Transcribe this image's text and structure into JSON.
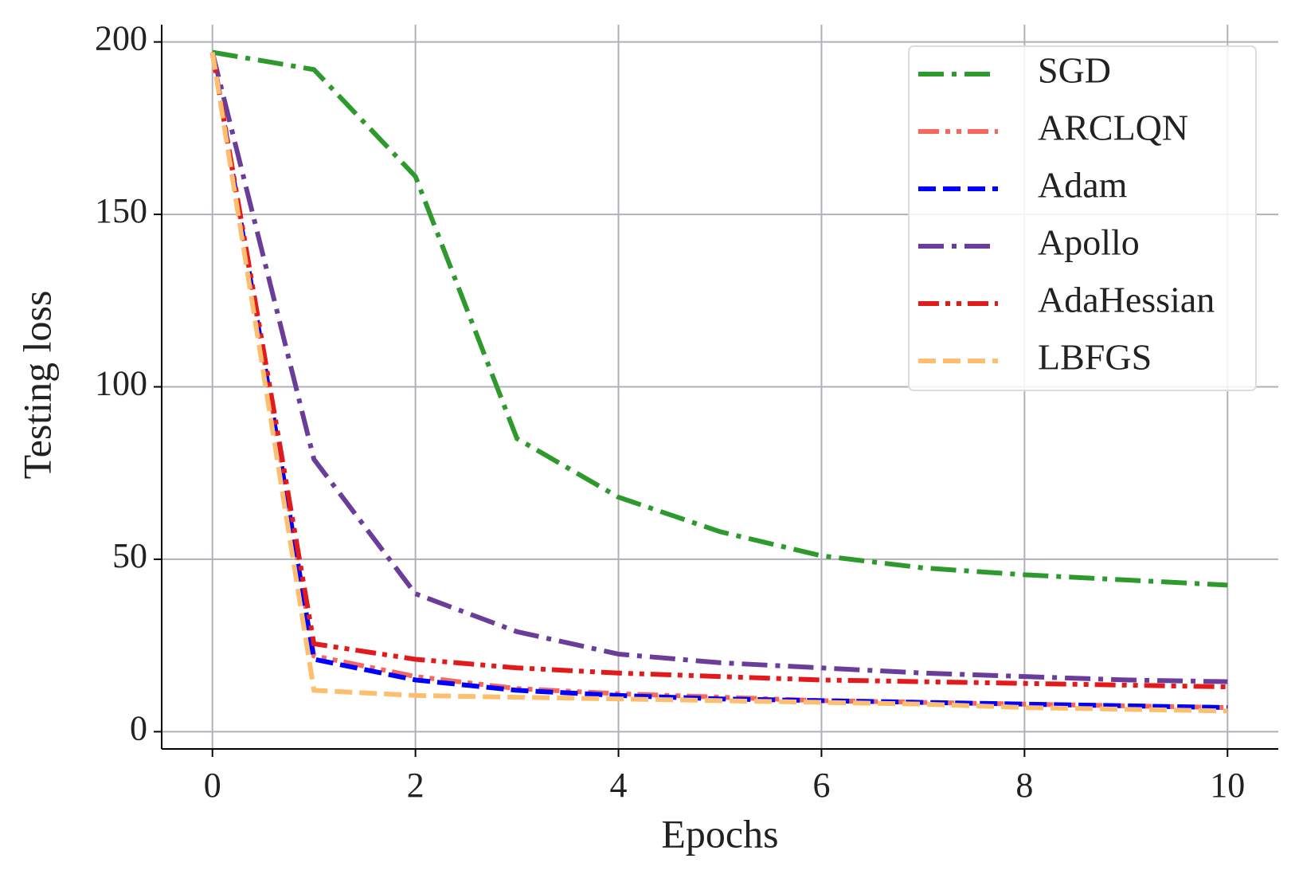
{
  "chart_data": {
    "type": "line",
    "x_label": "Epochs",
    "y_label": "Testing loss",
    "x": [
      0,
      1,
      2,
      3,
      4,
      5,
      6,
      7,
      8,
      9,
      10
    ],
    "xlim": [
      -0.5,
      10.5
    ],
    "xticks": [
      0,
      2,
      4,
      6,
      8,
      10
    ],
    "ylim": [
      -5,
      205
    ],
    "yticks": [
      0,
      50,
      100,
      150,
      200
    ],
    "grid": true,
    "legend": "upper right",
    "series": [
      {
        "name": "SGD",
        "color": "#2e9a2e",
        "linestyle": "dashdot",
        "values": [
          197,
          192,
          161,
          85,
          68,
          58,
          51,
          47.5,
          45.5,
          44,
          42.5
        ]
      },
      {
        "name": "ARCLQN",
        "color": "#f8665e",
        "linestyle": "dashdotdot",
        "values": [
          197,
          22,
          16,
          12.5,
          11,
          10,
          9,
          8.5,
          8,
          7.5,
          7
        ]
      },
      {
        "name": "Adam",
        "color": "#0000ff",
        "linestyle": "dashed",
        "values": [
          197,
          21,
          15,
          12,
          10.5,
          9.5,
          9,
          8.5,
          8,
          7.5,
          7
        ]
      },
      {
        "name": "Apollo",
        "color": "#6a3d9a",
        "linestyle": "dashdot",
        "values": [
          197,
          79,
          40,
          29,
          22.5,
          20,
          18.5,
          17,
          16,
          15,
          14.5
        ]
      },
      {
        "name": "AdaHessian",
        "color": "#e31a1c",
        "linestyle": "dashdotdot",
        "values": [
          197,
          25.5,
          21,
          18.5,
          17,
          16,
          15,
          14.5,
          14,
          13.5,
          13
        ]
      },
      {
        "name": "LBFGS",
        "color": "#fdbf6f",
        "linestyle": "dashed",
        "values": [
          197,
          12,
          10.5,
          10,
          9.5,
          9,
          8.5,
          8,
          7,
          6.5,
          6
        ]
      }
    ]
  }
}
